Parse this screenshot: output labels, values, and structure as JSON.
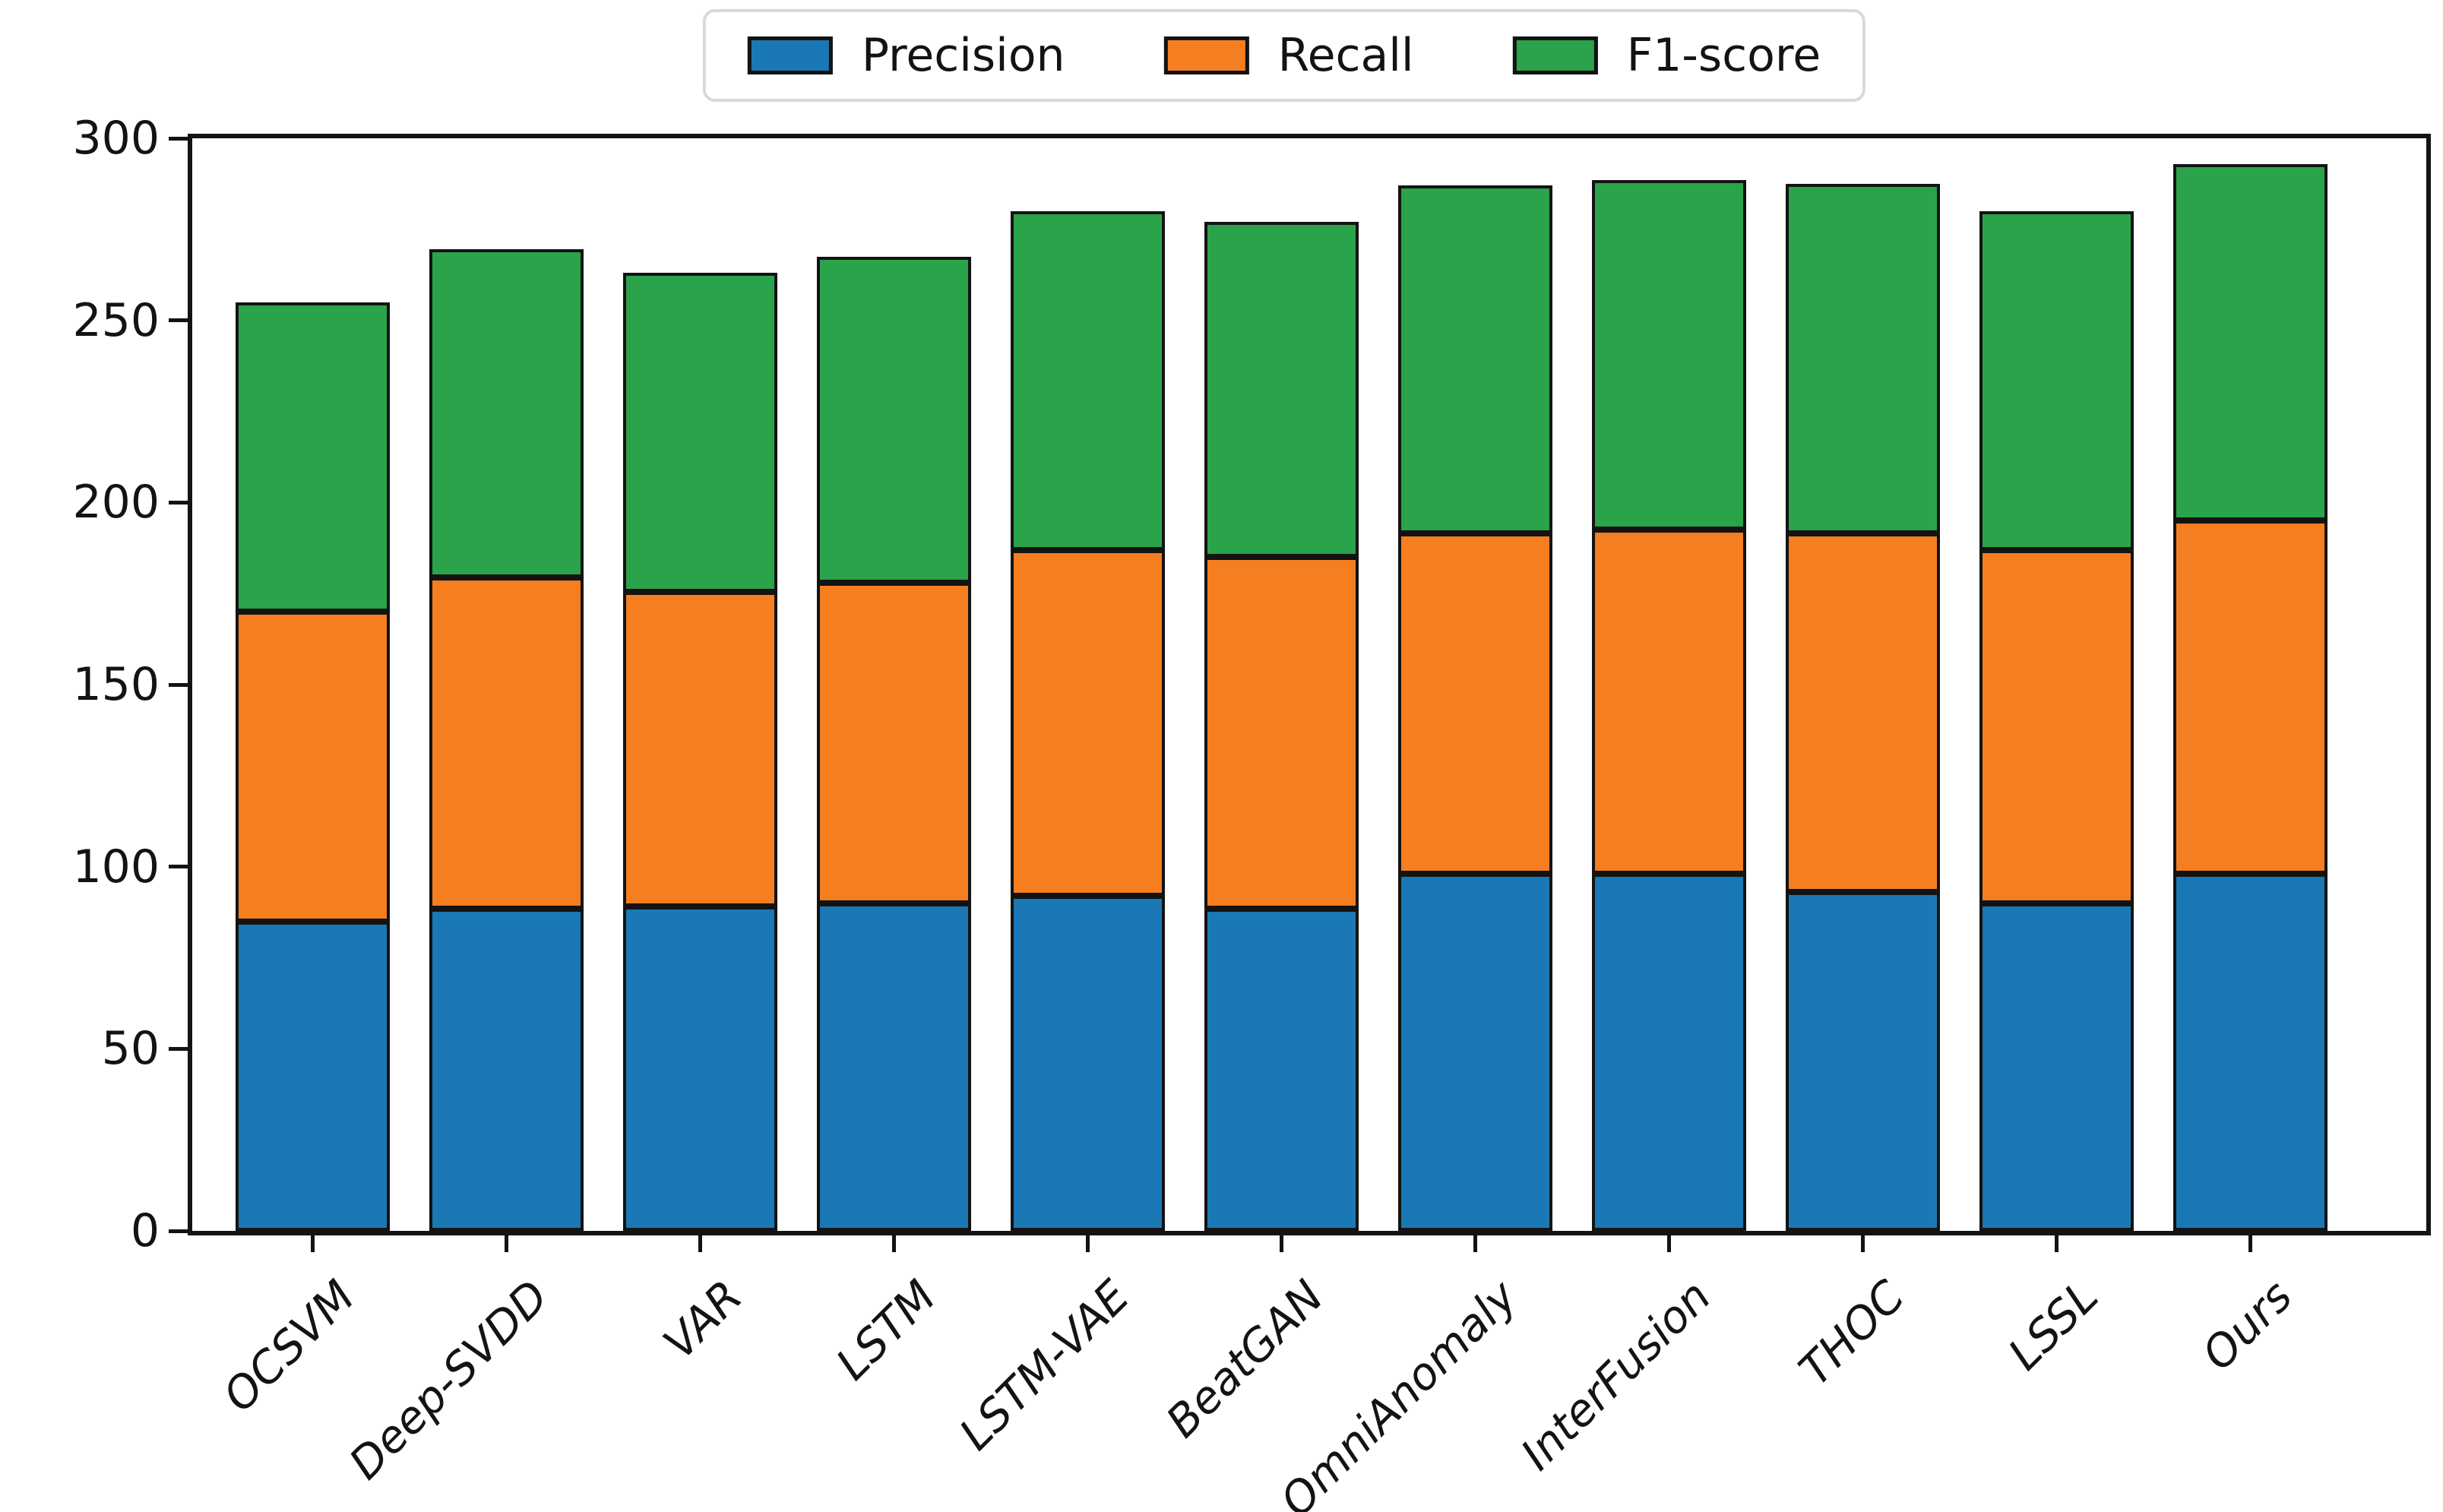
{
  "figure": {
    "type": "stacked-bar-chart",
    "background": "#ffffff",
    "axes_color": "#131313"
  },
  "legend": {
    "position": "top-center",
    "items": [
      {
        "label": "Precision",
        "color": "#1a78b4"
      },
      {
        "label": "Recall",
        "color": "#f57e20"
      },
      {
        "label": "F1-score",
        "color": "#2aa34a"
      }
    ]
  },
  "chart_data": {
    "type": "bar",
    "stacked": true,
    "title": "",
    "xlabel": "",
    "ylabel": "",
    "grid": false,
    "legend_position": "top-center",
    "ylim": [
      0,
      300
    ],
    "yticks": [
      0,
      50,
      100,
      150,
      200,
      250,
      300
    ],
    "bar_edge_color": "#131313",
    "categories": [
      "OCSVM",
      "Deep-SVDD",
      "VAR",
      "LSTM",
      "LSTM-VAE",
      "BeatGAN",
      "OmniAnomaly",
      "InterFusion",
      "THOC",
      "LSSL",
      "Ours"
    ],
    "series": [
      {
        "name": "Precision",
        "color": "#1a78b4",
        "values": [
          85,
          88.5,
          89,
          90,
          92,
          88.5,
          98,
          98,
          93,
          90,
          98
        ]
      },
      {
        "name": "Recall",
        "color": "#f57e20",
        "values": [
          85,
          91,
          86.5,
          88,
          95,
          96.5,
          93.5,
          94.5,
          98.5,
          97,
          97
        ]
      },
      {
        "name": "F1-score",
        "color": "#2aa34a",
        "values": [
          85,
          90,
          87.5,
          89.5,
          93,
          92,
          95.5,
          96,
          96,
          93,
          98
        ]
      }
    ],
    "stack_totals": [
      255,
      269.5,
      263,
      267.5,
      280,
      277,
      287,
      288.5,
      287.5,
      280,
      293
    ]
  }
}
